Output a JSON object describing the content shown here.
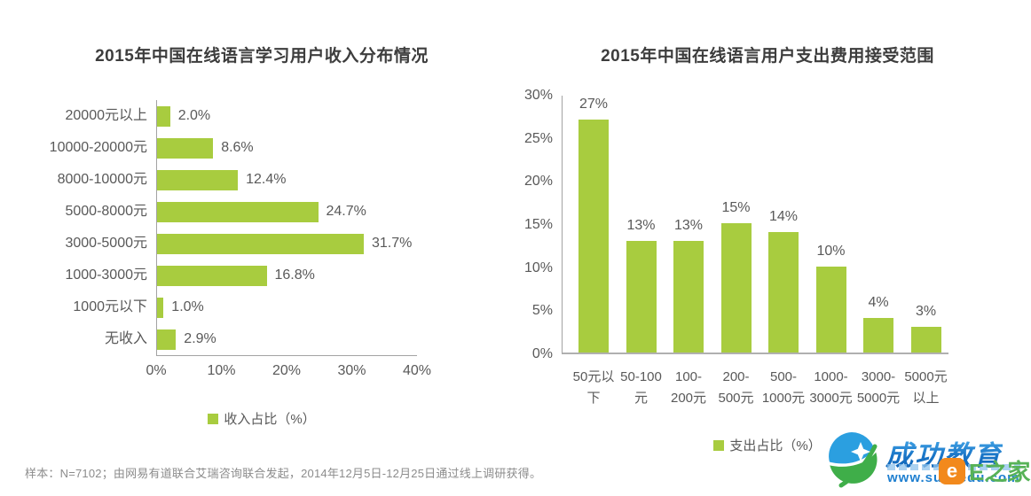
{
  "colors": {
    "bar_green": "#a8cc3f",
    "axis_line": "#a3a3a3",
    "title_text": "#3d3d3d",
    "label_text": "#595959",
    "footnote_text": "#8c8c8c",
    "watermark_blue": "#1e7fd0",
    "watermark_green": "#57b257",
    "watermark_orange": "#f2891c"
  },
  "chart_data": [
    {
      "type": "bar",
      "orientation": "horizontal",
      "title": "2015年中国在线语言学习用户收入分布情况",
      "categories": [
        "20000元以上",
        "10000-20000元",
        "8000-10000元",
        "5000-8000元",
        "3000-5000元",
        "1000-3000元",
        "1000元以下",
        "无收入"
      ],
      "values": [
        2.0,
        8.6,
        12.4,
        24.7,
        31.7,
        16.8,
        1.0,
        2.9
      ],
      "value_labels": [
        "2.0%",
        "8.6%",
        "12.4%",
        "24.7%",
        "31.7%",
        "16.8%",
        "1.0%",
        "2.9%"
      ],
      "x_ticks": [
        "0%",
        "10%",
        "20%",
        "30%",
        "40%"
      ],
      "xlim": [
        0,
        40
      ],
      "xlabel": "",
      "ylabel": "",
      "grid": false,
      "legend": "收入占比（%）",
      "legend_position": "bottom",
      "bar_color": "#a8cc3f"
    },
    {
      "type": "bar",
      "orientation": "vertical",
      "title": "2015年中国在线语言用户支出费用接受范围",
      "categories": [
        "50元以下",
        "50-100元",
        "100-200元",
        "200-500元",
        "500-1000元",
        "1000-3000元",
        "3000-5000元",
        "5000元以上"
      ],
      "tick_lines": [
        [
          "50元以",
          "下"
        ],
        [
          "50-100",
          "元"
        ],
        [
          "100-",
          "200元"
        ],
        [
          "200-",
          "500元"
        ],
        [
          "500-",
          "1000元"
        ],
        [
          "1000-",
          "3000元"
        ],
        [
          "3000-",
          "5000元"
        ],
        [
          "5000元",
          "以上"
        ]
      ],
      "values": [
        27,
        13,
        13,
        15,
        14,
        10,
        4,
        3
      ],
      "value_labels": [
        "27%",
        "13%",
        "13%",
        "15%",
        "14%",
        "10%",
        "4%",
        "3%"
      ],
      "y_ticks": [
        "0%",
        "5%",
        "10%",
        "15%",
        "20%",
        "25%",
        "30%"
      ],
      "ylim": [
        0,
        30
      ],
      "xlabel": "",
      "ylabel": "",
      "grid": false,
      "legend": "支出占比（%）",
      "legend_position": "bottom",
      "bar_color": "#a8cc3f"
    }
  ],
  "footer": {
    "note": "样本：N=7102；由网易有道联合艾瑞咨询联合发起，2014年12月5日-12月25日通过线上调研获得。"
  },
  "watermark": {
    "brand": "成功教育",
    "url": "www.succedu.com",
    "corner_brand": "E之家",
    "corner_badge_glyph": "e",
    "logo_icon": "succedu-swoosh-star"
  }
}
